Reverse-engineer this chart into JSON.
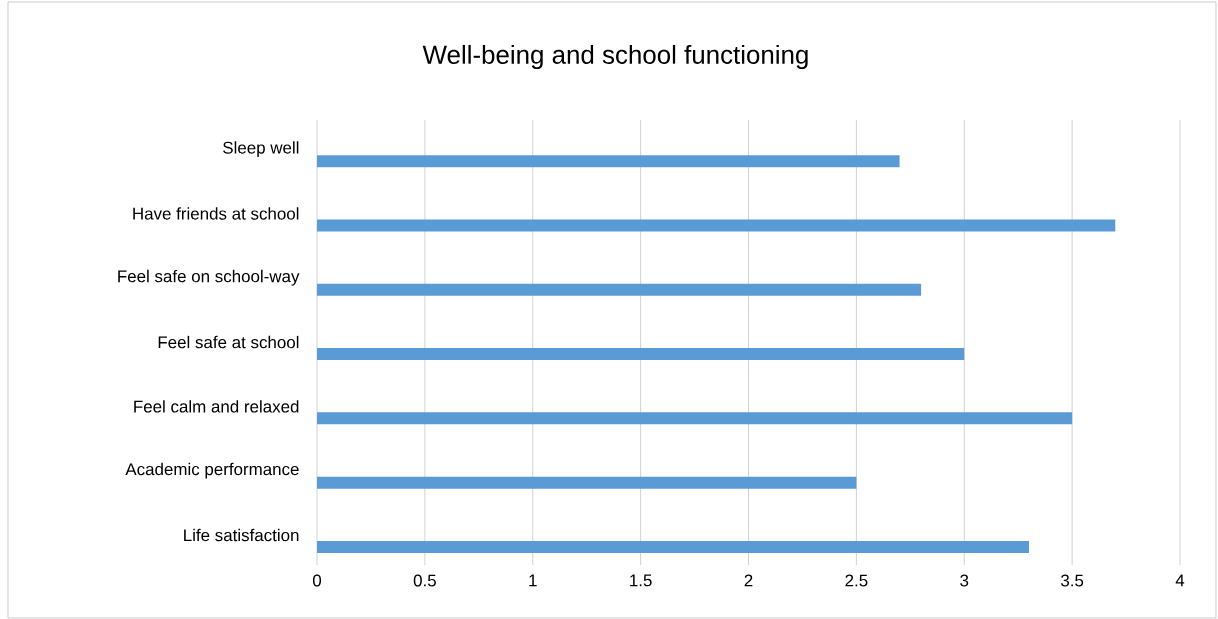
{
  "chart_data": {
    "type": "bar",
    "orientation": "horizontal",
    "title": "Well-being and school functioning",
    "categories": [
      "Sleep well",
      "Have friends at school",
      "Feel safe on school-way",
      "Feel safe at school",
      "Feel calm and relaxed",
      "Academic performance",
      "Life satisfaction"
    ],
    "values": [
      2.7,
      3.7,
      2.8,
      3.0,
      3.5,
      2.5,
      3.3
    ],
    "color": "#5b9bd5",
    "xlim": [
      0,
      4
    ],
    "xticks": [
      0,
      0.5,
      1,
      1.5,
      2,
      2.5,
      3,
      3.5,
      4
    ],
    "grid": "x"
  }
}
